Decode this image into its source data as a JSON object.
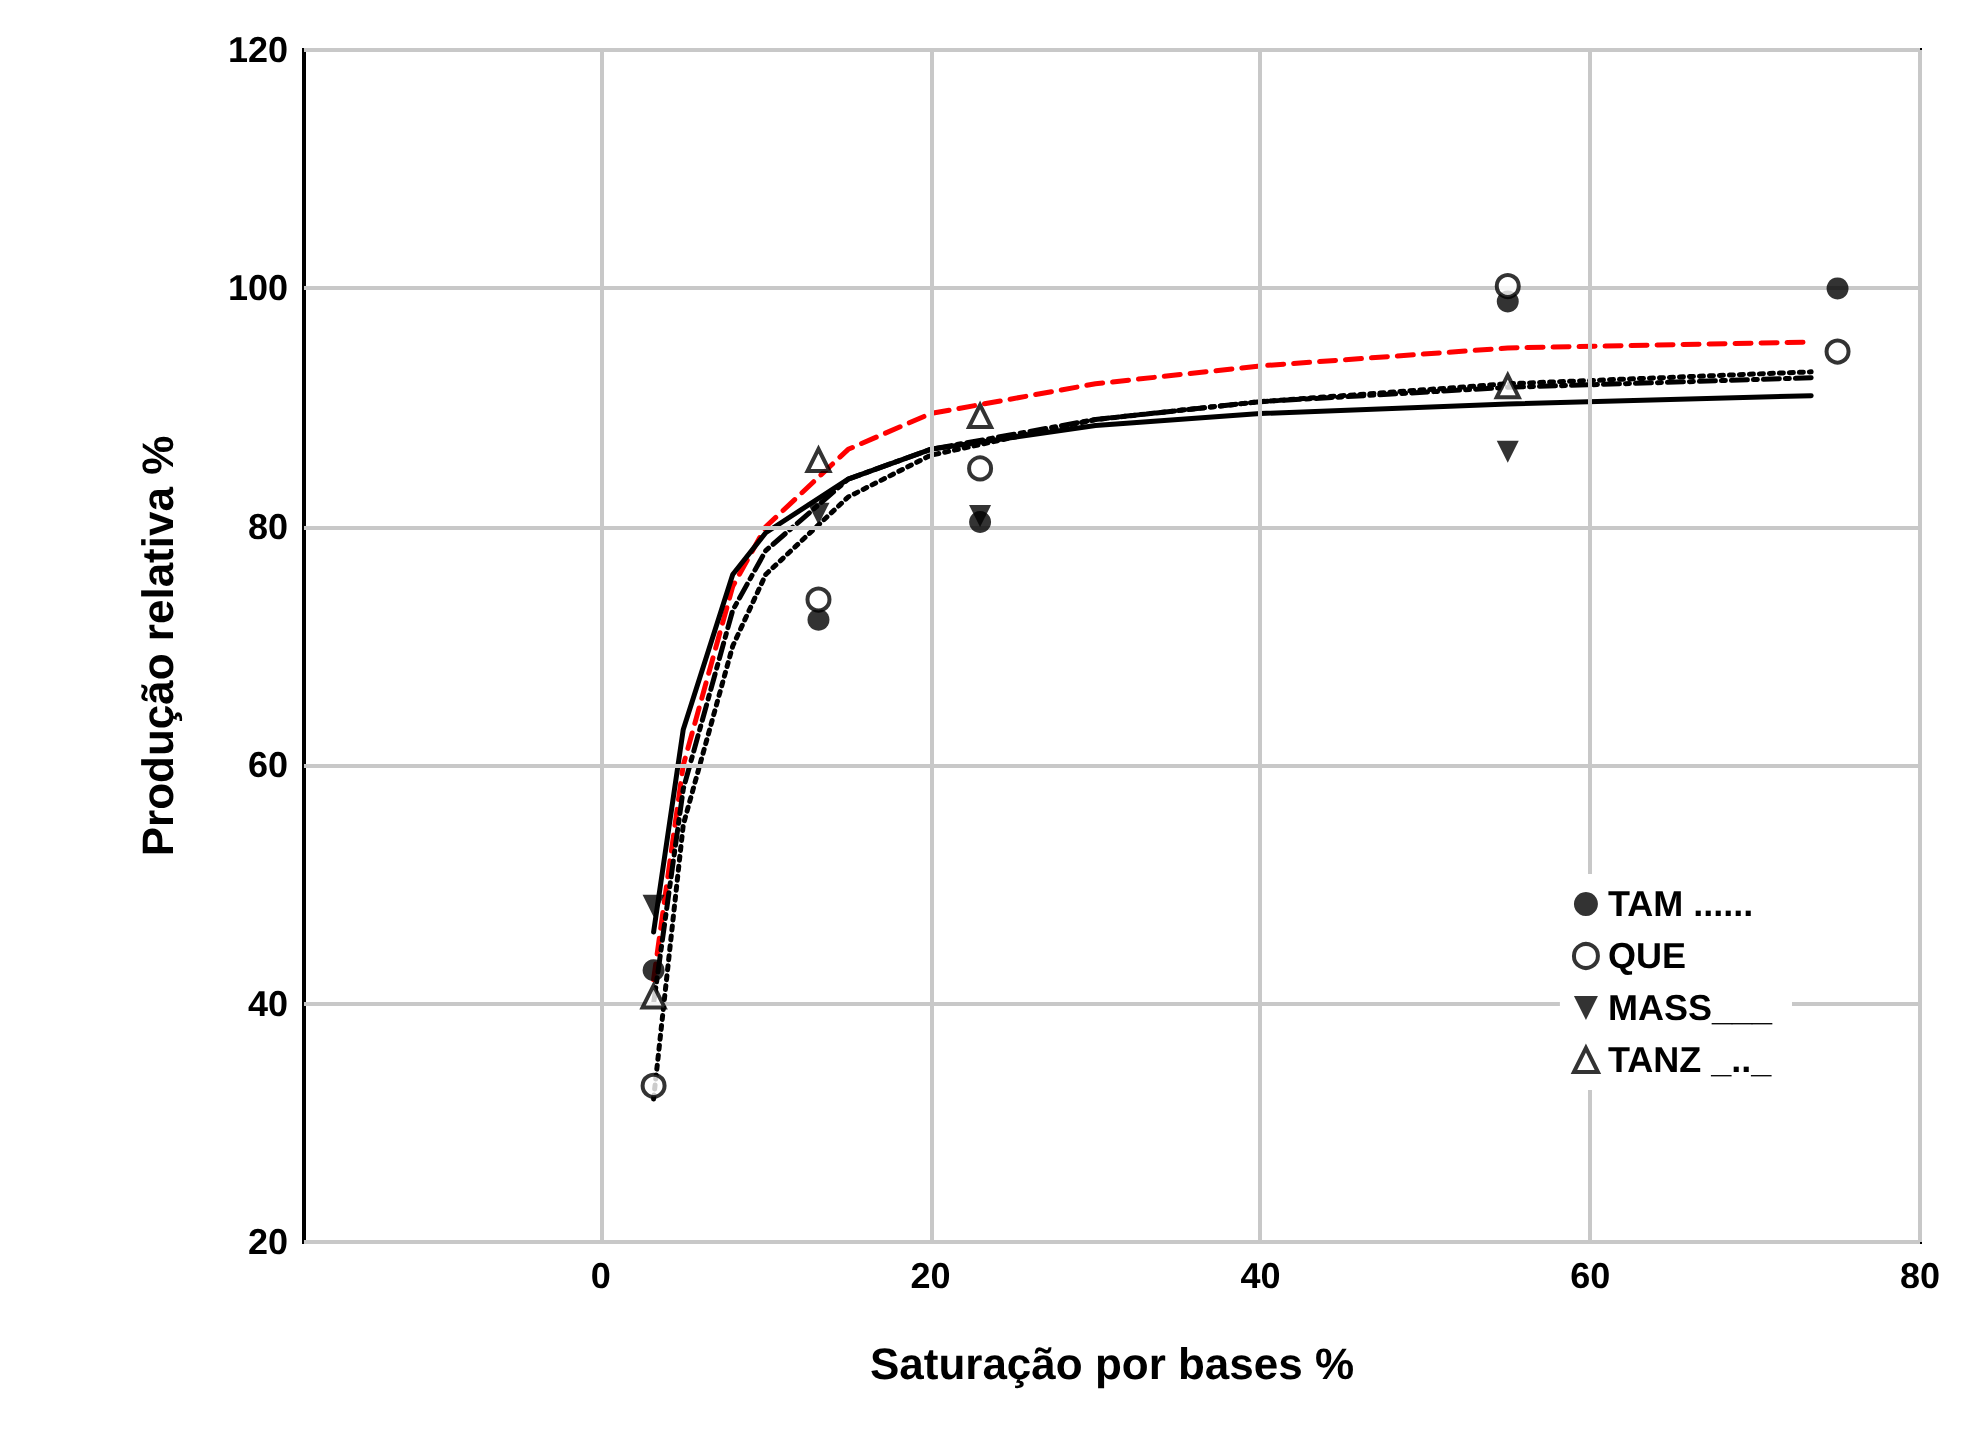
{
  "chart_data": {
    "type": "scatter",
    "xlabel": "Saturação por bases %",
    "ylabel": "Produção relativa %",
    "xlim": [
      -18,
      80
    ],
    "xticks": [
      0,
      20,
      40,
      60,
      80
    ],
    "ylim": [
      20,
      120
    ],
    "yticks": [
      20,
      40,
      60,
      80,
      100,
      120
    ],
    "grid": true,
    "legend": "bottom right",
    "series": [
      {
        "name": "TAM ......",
        "color": "#000000",
        "marker": "circle",
        "x": [
          3.2,
          13.2,
          23,
          55,
          75
        ],
        "values": [
          42.8,
          72.2,
          80.4,
          98.9,
          100
        ]
      },
      {
        "name": "QUE",
        "color": "#000000",
        "marker": "open-circle",
        "x": [
          3.2,
          13.2,
          23,
          55,
          75
        ],
        "values": [
          33.1,
          73.9,
          84.9,
          100.2,
          94.7
        ]
      },
      {
        "name": "MASS___",
        "color": "#000000",
        "marker": "triangle-down",
        "x": [
          3.2,
          13.2,
          23,
          55
        ],
        "values": [
          48.2,
          81.1,
          80.9,
          86.3
        ]
      },
      {
        "name": "TANZ _.._",
        "color": "#000000",
        "marker": "triangle",
        "x": [
          3.2,
          13.2,
          23,
          55
        ],
        "values": [
          40.6,
          85.6,
          89.3,
          91.8
        ]
      },
      {
        "type": "line",
        "color": "#000000",
        "line_style": "dotted",
        "marker": "none",
        "x": [
          3.2,
          5,
          8,
          10,
          15,
          20,
          30,
          40,
          55,
          73.4
        ],
        "values": [
          32,
          55,
          70,
          76,
          82.5,
          86,
          89,
          90.5,
          92,
          93
        ]
      },
      {
        "type": "line",
        "color": "#ff0000",
        "line_style": "dashed",
        "marker": "none",
        "x": [
          3.2,
          5,
          8,
          10,
          15,
          20,
          30,
          40,
          55,
          73.4
        ],
        "values": [
          42,
          60,
          75,
          80,
          86.5,
          89.5,
          92,
          93.5,
          95,
          95.5
        ]
      },
      {
        "type": "line",
        "color": "#000000",
        "line_style": "solid",
        "marker": "none",
        "x": [
          3.2,
          5,
          8,
          10,
          15,
          20,
          30,
          40,
          55,
          73.4
        ],
        "values": [
          46,
          63,
          76,
          79.5,
          84,
          86.5,
          88.5,
          89.5,
          90.3,
          91
        ]
      },
      {
        "type": "line",
        "color": "#000000",
        "line_style": "dashdot",
        "marker": "none",
        "x": [
          3.2,
          5,
          8,
          10,
          15,
          20,
          30,
          40,
          55,
          73.4
        ],
        "values": [
          40,
          58,
          73,
          78,
          84,
          86.5,
          89,
          90.5,
          91.7,
          92.5
        ]
      }
    ]
  }
}
